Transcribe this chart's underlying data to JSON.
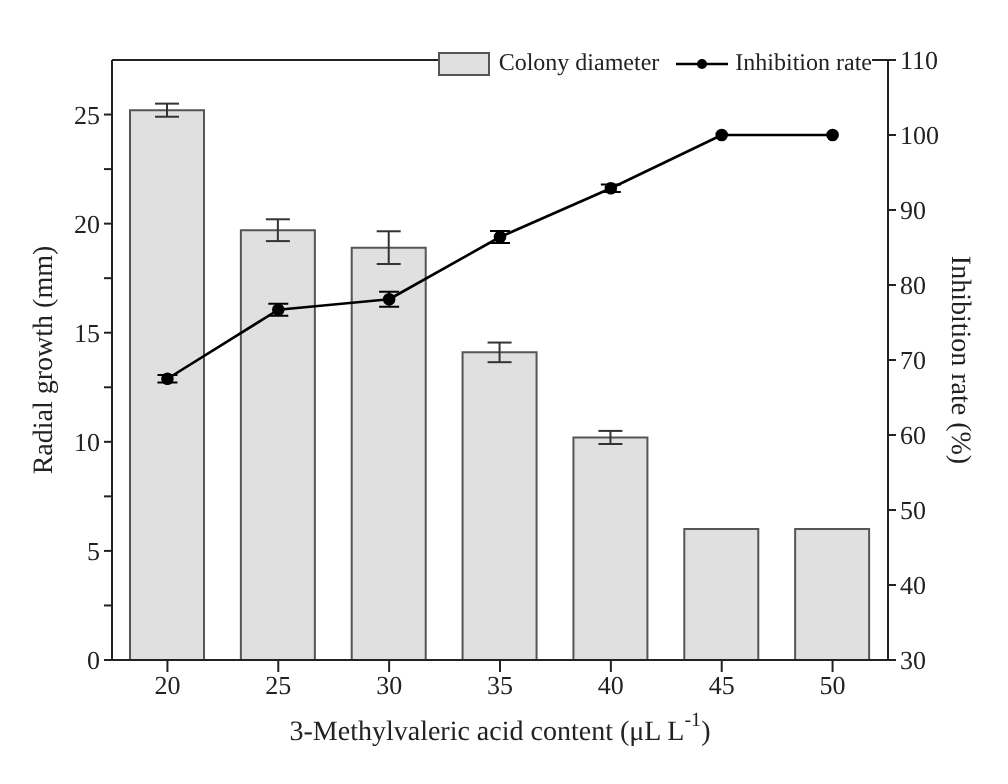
{
  "chart_data": {
    "type": "bar",
    "xlabel": "3-Methylvaleric acid content (μL L$^{-1}$)",
    "ylabel": "Radial growth (mm)",
    "y2label": "Inhibition rate (%)",
    "categories": [
      "20",
      "25",
      "30",
      "35",
      "40",
      "45",
      "50"
    ],
    "series": [
      {
        "name": "Colony diameter",
        "color": "#e0e0e0",
        "values": [
          25.2,
          19.7,
          18.9,
          14.1,
          10.2,
          6,
          6
        ],
        "errors": [
          0.3,
          0.5,
          0.75,
          0.45,
          0.3,
          null,
          null
        ]
      },
      {
        "name": "Inhibition rate",
        "type": "line",
        "axis": "y2",
        "color": "#000000",
        "values": [
          67.5,
          76.7,
          78.1,
          86.4,
          92.9,
          100,
          100
        ],
        "errors": [
          0.5,
          0.8,
          1,
          0.8,
          0.5,
          null,
          null
        ]
      }
    ],
    "ylim": [
      0,
      27.5
    ],
    "yticks": [
      0,
      {
        "value": 2.5,
        "label": null
      },
      5,
      {
        "value": 7.5,
        "label": null
      },
      10,
      {
        "value": 12.5,
        "label": null
      },
      15,
      {
        "value": 17.5,
        "label": null
      },
      20,
      {
        "value": 22.5,
        "label": null
      },
      25
    ],
    "y2lim": [
      30,
      110
    ],
    "y2ticks": [
      30,
      40,
      50,
      60,
      70,
      80,
      90,
      100,
      110
    ],
    "legend": "top right",
    "marker": "circle",
    "line_style": "solid"
  }
}
